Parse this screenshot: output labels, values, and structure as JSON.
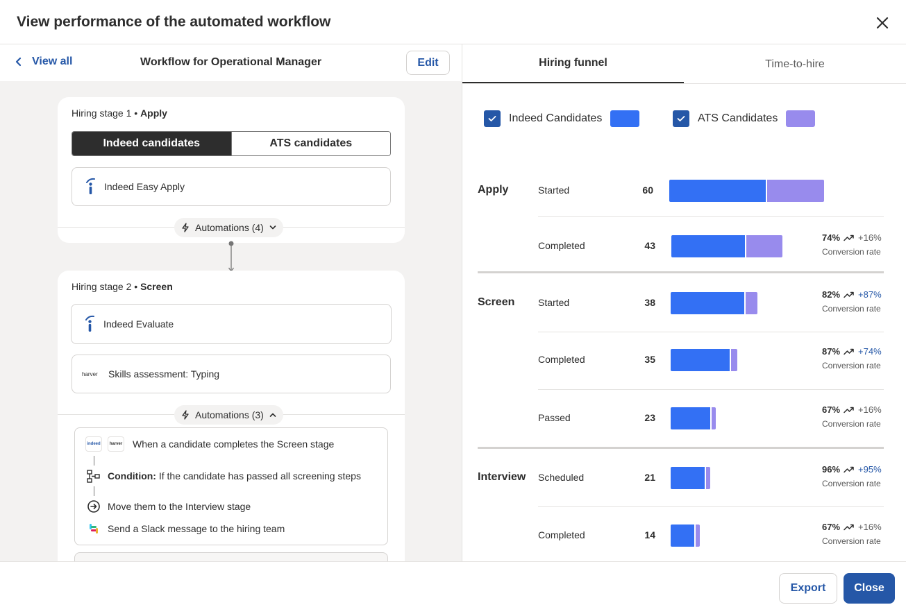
{
  "header": {
    "title": "View performance of the automated workflow"
  },
  "left": {
    "view_all": "View all",
    "workflow_title": "Workflow for Operational Manager",
    "edit_label": "Edit",
    "stage1": {
      "label_prefix": "Hiring stage 1 • ",
      "label_name": "Apply",
      "seg_indeed": "Indeed candidates",
      "seg_ats": "ATS candidates",
      "source": "Indeed Easy Apply",
      "automations": "Automations (4)"
    },
    "stage2": {
      "label_prefix": "Hiring stage 2 • ",
      "label_name": "Screen",
      "source1": "Indeed Evaluate",
      "source2": "Skills assessment: Typing",
      "harver_logo": "harver",
      "automations": "Automations (3)",
      "trigger": "When a candidate completes the Screen stage",
      "indeed_logo": "indeed",
      "condition_label": "Condition:",
      "condition_text": " If the candidate has passed all screening steps",
      "action1": "Move them to the Interview stage",
      "action2": "Send a Slack message to the hiring team"
    }
  },
  "right": {
    "tabs": [
      {
        "label": "Hiring funnel",
        "active": true
      },
      {
        "label": "Time-to-hire",
        "active": false
      }
    ],
    "legend": [
      {
        "label": "Indeed Candidates",
        "color": "#3370f4"
      },
      {
        "label": "ATS Candidates",
        "color": "#988bed"
      }
    ],
    "conversion_label": "Conversion rate",
    "groups": [
      {
        "name": "Apply",
        "rows": [
          {
            "label": "Started",
            "count": "60",
            "indeed": 139,
            "ats": 82,
            "pct": "",
            "delta": "",
            "delta_blue": false
          },
          {
            "label": "Completed",
            "count": "43",
            "indeed": 106,
            "ats": 52,
            "pct": "74%",
            "delta": "+16%",
            "delta_blue": false
          }
        ]
      },
      {
        "name": "Screen",
        "rows": [
          {
            "label": "Started",
            "count": "38",
            "indeed": 106,
            "ats": 17,
            "pct": "82%",
            "delta": "+87%",
            "delta_blue": true
          },
          {
            "label": "Completed",
            "count": "35",
            "indeed": 85,
            "ats": 9,
            "pct": "87%",
            "delta": "+74%",
            "delta_blue": true
          },
          {
            "label": "Passed",
            "count": "23",
            "indeed": 57,
            "ats": 6,
            "pct": "67%",
            "delta": "+16%",
            "delta_blue": false
          }
        ]
      },
      {
        "name": "Interview",
        "rows": [
          {
            "label": "Scheduled",
            "count": "21",
            "indeed": 49,
            "ats": 6,
            "pct": "96%",
            "delta": "+95%",
            "delta_blue": true
          },
          {
            "label": "Completed",
            "count": "14",
            "indeed": 34,
            "ats": 6,
            "pct": "67%",
            "delta": "+16%",
            "delta_blue": false
          }
        ]
      }
    ]
  },
  "footer": {
    "export_label": "Export",
    "close_label": "Close"
  }
}
